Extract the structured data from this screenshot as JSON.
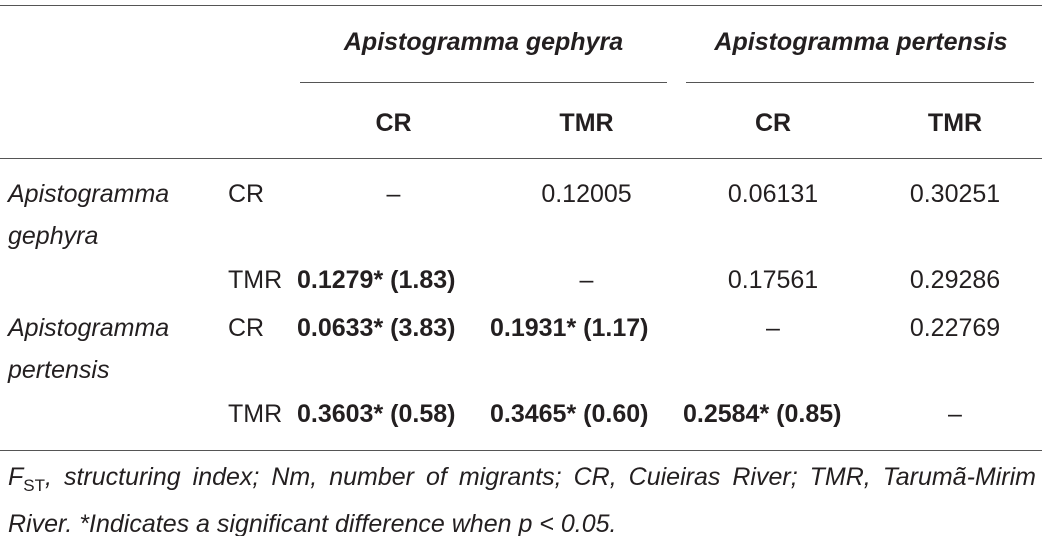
{
  "table": {
    "groups": [
      "Apistogramma gephyra",
      "Apistogramma pertensis"
    ],
    "columns": [
      "CR",
      "TMR",
      "CR",
      "TMR"
    ],
    "rows": [
      {
        "species": "Apistogramma gephyra",
        "site": "CR",
        "values": [
          "–",
          "0.12005",
          "0.06131",
          "0.30251"
        ]
      },
      {
        "site": "TMR",
        "values": [
          "0.1279* (1.83)",
          "–",
          "0.17561",
          "0.29286"
        ]
      },
      {
        "species": "Apistogramma pertensis",
        "site": "CR",
        "values": [
          "0.0633* (3.83)",
          "0.1931* (1.17)",
          "–",
          "0.22769"
        ]
      },
      {
        "site": "TMR",
        "values": [
          "0.3603* (0.58)",
          "0.3465* (0.60)",
          "0.2584* (0.85)",
          "–"
        ]
      }
    ]
  },
  "footnote": {
    "symbol": "F",
    "subscript": "ST",
    "text": ", structuring index; Nm, number of migrants; CR, Cuieiras River; TMR, Tarumã-Mirim River. *Indicates a significant difference when p < 0.05."
  }
}
